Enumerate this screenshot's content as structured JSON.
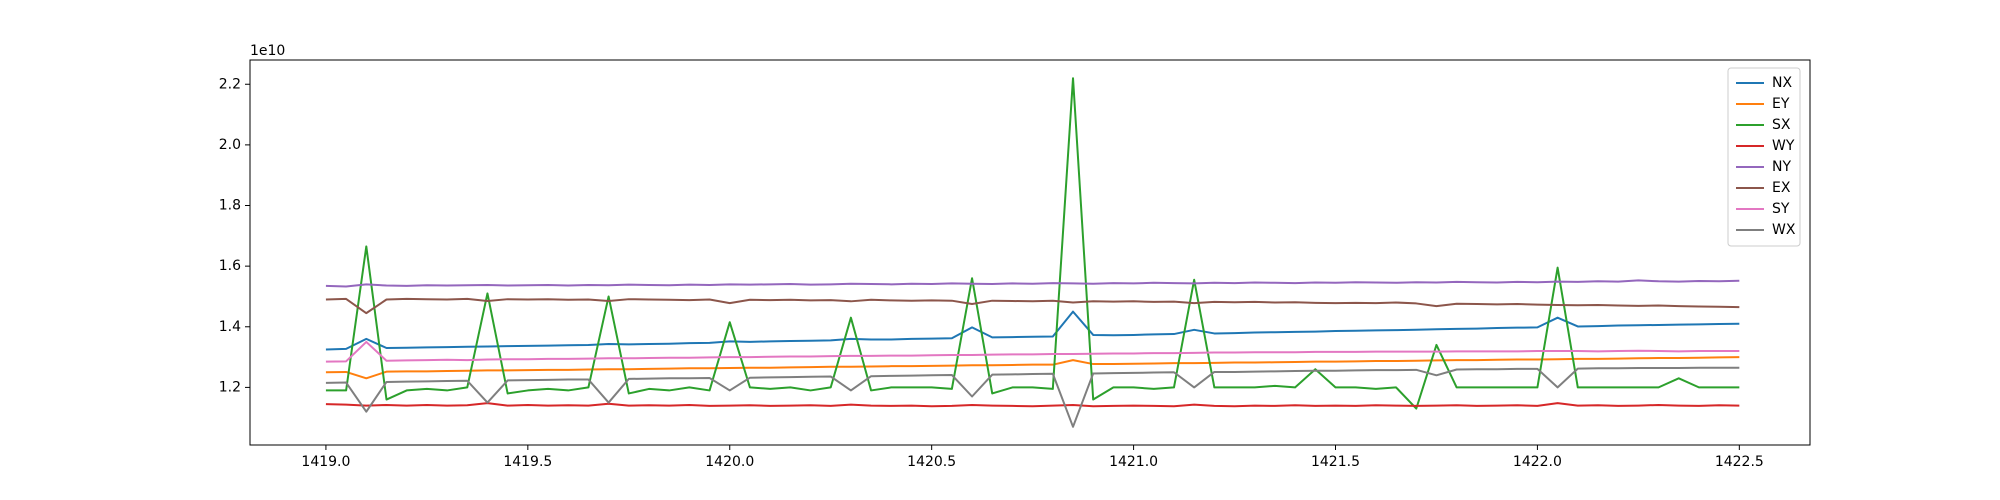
{
  "chart_data": {
    "type": "line",
    "y_offset_label": "1e10",
    "xlim": [
      1418.812,
      1422.675
    ],
    "ylim": [
      1.01,
      2.28
    ],
    "xticks": [
      {
        "value": 1419,
        "label": "1419.0"
      },
      1419.5,
      {
        "value": 1420,
        "label": "1420.0"
      },
      1420.5,
      {
        "value": 1421,
        "label": "1421.0"
      },
      1421.5,
      {
        "value": 1422,
        "label": "1422.0"
      },
      1422.5
    ],
    "yticks": [
      1.2,
      1.4,
      1.6,
      1.8,
      {
        "value": 2,
        "label": "2.0"
      },
      2.2
    ],
    "grid": false,
    "legend": "upper right",
    "x": [
      1419,
      1419.05,
      1419.1,
      1419.15,
      1419.2,
      1419.25,
      1419.3,
      1419.35,
      1419.4,
      1419.45,
      1419.5,
      1419.55,
      1419.6,
      1419.65,
      1419.7,
      1419.75,
      1419.8,
      1419.85,
      1419.9,
      1419.95,
      1420,
      1420.05,
      1420.1,
      1420.15,
      1420.2,
      1420.25,
      1420.3,
      1420.35,
      1420.4,
      1420.45,
      1420.5,
      1420.55,
      1420.6,
      1420.65,
      1420.7,
      1420.75,
      1420.8,
      1420.85,
      1420.9,
      1420.95,
      1421,
      1421.05,
      1421.1,
      1421.15,
      1421.2,
      1421.25,
      1421.3,
      1421.35,
      1421.4,
      1421.45,
      1421.5,
      1421.55,
      1421.6,
      1421.65,
      1421.7,
      1421.75,
      1421.8,
      1421.85,
      1421.9,
      1421.95,
      1422,
      1422.05,
      1422.1,
      1422.15,
      1422.2,
      1422.25,
      1422.3,
      1422.35,
      1422.4,
      1422.45,
      1422.5
    ],
    "series": [
      {
        "name": "NX",
        "color": "#1f77b4",
        "values": [
          1.325,
          1.327,
          1.36,
          1.33,
          1.331,
          1.332,
          1.333,
          1.334,
          1.335,
          1.336,
          1.337,
          1.338,
          1.339,
          1.34,
          1.343,
          1.342,
          1.343,
          1.344,
          1.346,
          1.347,
          1.352,
          1.35,
          1.352,
          1.353,
          1.354,
          1.355,
          1.36,
          1.358,
          1.358,
          1.36,
          1.361,
          1.362,
          1.398,
          1.365,
          1.366,
          1.367,
          1.368,
          1.45,
          1.373,
          1.372,
          1.373,
          1.375,
          1.376,
          1.39,
          1.378,
          1.379,
          1.381,
          1.382,
          1.383,
          1.384,
          1.386,
          1.387,
          1.388,
          1.389,
          1.39,
          1.392,
          1.393,
          1.394,
          1.396,
          1.397,
          1.398,
          1.43,
          1.401,
          1.402,
          1.404,
          1.405,
          1.406,
          1.407,
          1.408,
          1.409,
          1.41
        ]
      },
      {
        "name": "EY",
        "color": "#ff7f0e",
        "values": [
          1.25,
          1.251,
          1.23,
          1.252,
          1.253,
          1.253,
          1.254,
          1.255,
          1.256,
          1.256,
          1.257,
          1.258,
          1.258,
          1.259,
          1.26,
          1.26,
          1.261,
          1.262,
          1.263,
          1.263,
          1.264,
          1.265,
          1.265,
          1.266,
          1.267,
          1.268,
          1.268,
          1.269,
          1.27,
          1.27,
          1.271,
          1.272,
          1.273,
          1.273,
          1.274,
          1.275,
          1.275,
          1.29,
          1.277,
          1.277,
          1.278,
          1.279,
          1.28,
          1.28,
          1.281,
          1.282,
          1.282,
          1.283,
          1.284,
          1.285,
          1.285,
          1.286,
          1.287,
          1.287,
          1.288,
          1.289,
          1.29,
          1.29,
          1.291,
          1.292,
          1.292,
          1.293,
          1.294,
          1.294,
          1.295,
          1.296,
          1.297,
          1.297,
          1.298,
          1.299,
          1.3
        ]
      },
      {
        "name": "SX",
        "color": "#2ca02c",
        "values": [
          1.19,
          1.19,
          1.665,
          1.16,
          1.19,
          1.195,
          1.19,
          1.2,
          1.51,
          1.18,
          1.19,
          1.195,
          1.19,
          1.2,
          1.5,
          1.18,
          1.195,
          1.19,
          1.2,
          1.19,
          1.415,
          1.2,
          1.195,
          1.2,
          1.19,
          1.2,
          1.43,
          1.19,
          1.2,
          1.2,
          1.2,
          1.195,
          1.56,
          1.18,
          1.2,
          1.2,
          1.195,
          2.22,
          1.16,
          1.2,
          1.2,
          1.195,
          1.2,
          1.555,
          1.2,
          1.2,
          1.2,
          1.205,
          1.2,
          1.26,
          1.2,
          1.2,
          1.195,
          1.2,
          1.13,
          1.34,
          1.2,
          1.2,
          1.2,
          1.2,
          1.2,
          1.595,
          1.2,
          1.2,
          1.2,
          1.2,
          1.2,
          1.23,
          1.2,
          1.2,
          1.2
        ]
      },
      {
        "name": "WY",
        "color": "#d62728",
        "values": [
          1.145,
          1.143,
          1.14,
          1.142,
          1.14,
          1.142,
          1.14,
          1.141,
          1.148,
          1.14,
          1.142,
          1.14,
          1.141,
          1.14,
          1.146,
          1.14,
          1.141,
          1.14,
          1.142,
          1.139,
          1.14,
          1.141,
          1.139,
          1.14,
          1.141,
          1.139,
          1.143,
          1.14,
          1.139,
          1.14,
          1.138,
          1.139,
          1.142,
          1.14,
          1.139,
          1.138,
          1.14,
          1.142,
          1.138,
          1.139,
          1.14,
          1.139,
          1.138,
          1.143,
          1.139,
          1.138,
          1.14,
          1.139,
          1.141,
          1.139,
          1.14,
          1.139,
          1.141,
          1.14,
          1.139,
          1.14,
          1.141,
          1.139,
          1.14,
          1.141,
          1.139,
          1.148,
          1.14,
          1.141,
          1.139,
          1.14,
          1.142,
          1.14,
          1.139,
          1.141,
          1.14
        ]
      },
      {
        "name": "NY",
        "color": "#9467bd",
        "values": [
          1.535,
          1.533,
          1.54,
          1.536,
          1.535,
          1.537,
          1.536,
          1.537,
          1.538,
          1.536,
          1.537,
          1.538,
          1.536,
          1.538,
          1.537,
          1.539,
          1.538,
          1.537,
          1.539,
          1.538,
          1.54,
          1.539,
          1.54,
          1.541,
          1.539,
          1.54,
          1.542,
          1.541,
          1.54,
          1.542,
          1.541,
          1.543,
          1.542,
          1.541,
          1.543,
          1.542,
          1.544,
          1.543,
          1.542,
          1.544,
          1.543,
          1.545,
          1.544,
          1.543,
          1.545,
          1.544,
          1.546,
          1.545,
          1.544,
          1.546,
          1.545,
          1.547,
          1.546,
          1.545,
          1.547,
          1.546,
          1.548,
          1.547,
          1.546,
          1.548,
          1.547,
          1.549,
          1.548,
          1.55,
          1.549,
          1.553,
          1.55,
          1.549,
          1.551,
          1.55,
          1.552
        ]
      },
      {
        "name": "EX",
        "color": "#8c564b",
        "values": [
          1.49,
          1.492,
          1.445,
          1.49,
          1.492,
          1.491,
          1.49,
          1.492,
          1.485,
          1.491,
          1.49,
          1.491,
          1.489,
          1.49,
          1.485,
          1.491,
          1.49,
          1.489,
          1.488,
          1.49,
          1.478,
          1.489,
          1.488,
          1.489,
          1.487,
          1.488,
          1.484,
          1.489,
          1.487,
          1.486,
          1.487,
          1.486,
          1.475,
          1.486,
          1.485,
          1.484,
          1.486,
          1.48,
          1.484,
          1.483,
          1.484,
          1.482,
          1.483,
          1.478,
          1.482,
          1.481,
          1.482,
          1.48,
          1.481,
          1.479,
          1.478,
          1.479,
          1.478,
          1.48,
          1.477,
          1.468,
          1.476,
          1.475,
          1.474,
          1.475,
          1.473,
          1.472,
          1.471,
          1.472,
          1.47,
          1.469,
          1.47,
          1.468,
          1.467,
          1.466,
          1.465
        ]
      },
      {
        "name": "SY",
        "color": "#e377c2",
        "values": [
          1.285,
          1.286,
          1.35,
          1.288,
          1.289,
          1.29,
          1.291,
          1.29,
          1.292,
          1.293,
          1.293,
          1.294,
          1.294,
          1.295,
          1.296,
          1.296,
          1.297,
          1.298,
          1.298,
          1.299,
          1.3,
          1.3,
          1.301,
          1.302,
          1.302,
          1.303,
          1.304,
          1.304,
          1.305,
          1.305,
          1.306,
          1.307,
          1.307,
          1.308,
          1.309,
          1.309,
          1.31,
          1.31,
          1.311,
          1.312,
          1.312,
          1.313,
          1.313,
          1.314,
          1.315,
          1.315,
          1.316,
          1.316,
          1.316,
          1.317,
          1.317,
          1.317,
          1.318,
          1.318,
          1.318,
          1.318,
          1.319,
          1.319,
          1.319,
          1.319,
          1.32,
          1.32,
          1.32,
          1.319,
          1.32,
          1.321,
          1.32,
          1.319,
          1.32,
          1.32,
          1.32
        ]
      },
      {
        "name": "WX",
        "color": "#7f7f7f",
        "values": [
          1.215,
          1.216,
          1.12,
          1.218,
          1.219,
          1.22,
          1.221,
          1.222,
          1.15,
          1.223,
          1.224,
          1.225,
          1.226,
          1.226,
          1.15,
          1.228,
          1.229,
          1.23,
          1.23,
          1.231,
          1.19,
          1.232,
          1.233,
          1.234,
          1.235,
          1.236,
          1.19,
          1.237,
          1.238,
          1.239,
          1.24,
          1.241,
          1.17,
          1.242,
          1.243,
          1.244,
          1.245,
          1.07,
          1.246,
          1.247,
          1.248,
          1.249,
          1.25,
          1.2,
          1.251,
          1.251,
          1.252,
          1.253,
          1.254,
          1.255,
          1.255,
          1.256,
          1.257,
          1.257,
          1.258,
          1.24,
          1.259,
          1.26,
          1.26,
          1.261,
          1.261,
          1.2,
          1.262,
          1.263,
          1.263,
          1.264,
          1.264,
          1.264,
          1.265,
          1.265,
          1.265
        ]
      }
    ]
  }
}
